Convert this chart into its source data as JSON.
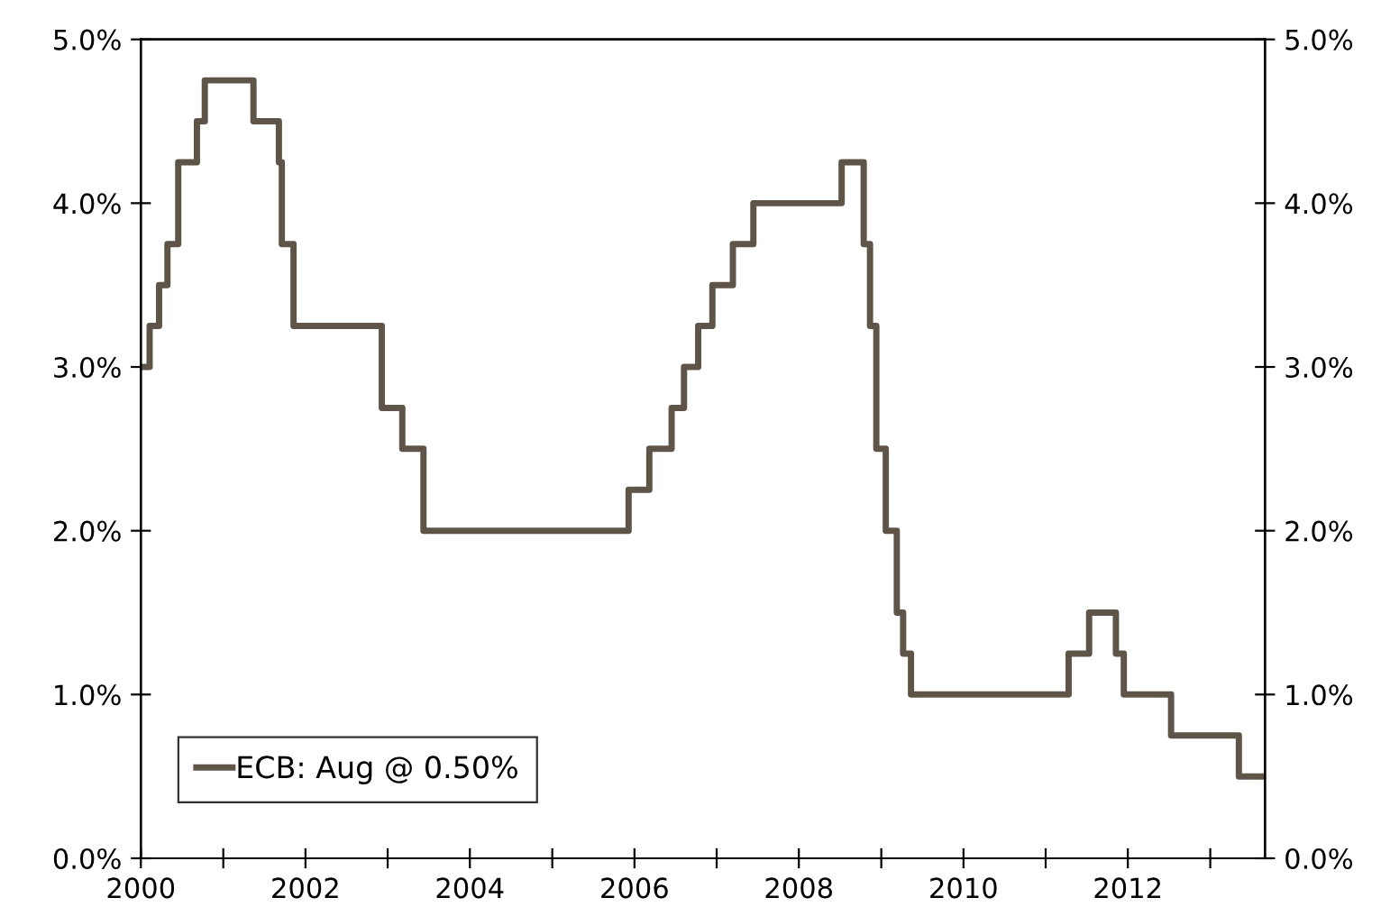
{
  "chart_data": {
    "type": "step",
    "x": [
      "2000-01-01",
      "2000-02-09",
      "2000-03-22",
      "2000-04-28",
      "2000-06-15",
      "2000-09-06",
      "2000-10-11",
      "2001-05-15",
      "2001-09-05",
      "2001-09-18",
      "2001-11-09",
      "2002-12-06",
      "2003-03-07",
      "2003-06-09",
      "2005-12-06",
      "2006-03-08",
      "2006-06-15",
      "2006-08-09",
      "2006-10-11",
      "2006-12-13",
      "2007-03-14",
      "2007-06-13",
      "2008-07-09",
      "2008-10-15",
      "2008-11-12",
      "2008-12-10",
      "2009-01-21",
      "2009-03-11",
      "2009-04-08",
      "2009-05-13",
      "2011-04-13",
      "2011-07-13",
      "2011-11-09",
      "2011-12-14",
      "2012-07-11",
      "2013-05-08",
      "2013-08-31"
    ],
    "series": [
      {
        "name": "ECB: Aug @ 0.50%",
        "color": "#5f5448",
        "values": [
          3.0,
          3.25,
          3.5,
          3.75,
          4.25,
          4.5,
          4.75,
          4.5,
          4.25,
          3.75,
          3.25,
          2.75,
          2.5,
          2.0,
          2.25,
          2.5,
          2.75,
          3.0,
          3.25,
          3.5,
          3.75,
          4.0,
          4.25,
          3.75,
          3.25,
          2.5,
          2.0,
          1.5,
          1.25,
          1.0,
          1.25,
          1.5,
          1.25,
          1.0,
          0.75,
          0.5,
          0.5
        ]
      }
    ],
    "xlim": [
      "2000-01-01",
      "2013-09-01"
    ],
    "xticks": [
      {
        "value": "2000",
        "label": "2000"
      },
      {
        "value": "2001",
        "label": null
      },
      {
        "value": "2002",
        "label": "2002"
      },
      {
        "value": "2003",
        "label": null
      },
      {
        "value": "2004",
        "label": "2004"
      },
      {
        "value": "2005",
        "label": null
      },
      {
        "value": "2006",
        "label": "2006"
      },
      {
        "value": "2007",
        "label": null
      },
      {
        "value": "2008",
        "label": "2008"
      },
      {
        "value": "2009",
        "label": null
      },
      {
        "value": "2010",
        "label": "2010"
      },
      {
        "value": "2011",
        "label": null
      },
      {
        "value": "2012",
        "label": "2012"
      },
      {
        "value": "2013",
        "label": null
      }
    ],
    "ylim": [
      0,
      5
    ],
    "yticks": [
      {
        "value": 0,
        "label": "0.0%"
      },
      {
        "value": 1,
        "label": "1.0%"
      },
      {
        "value": 2,
        "label": "2.0%"
      },
      {
        "value": 3,
        "label": "3.0%"
      },
      {
        "value": 4,
        "label": "4.0%"
      },
      {
        "value": 5,
        "label": "5.0%"
      }
    ],
    "y2lim": [
      0,
      5
    ],
    "y2ticks": [
      {
        "value": 0,
        "label": "0.0%"
      },
      {
        "value": 1,
        "label": "1.0%"
      },
      {
        "value": 2,
        "label": "2.0%"
      },
      {
        "value": 3,
        "label": "3.0%"
      },
      {
        "value": 4,
        "label": "4.0%"
      },
      {
        "value": 5,
        "label": "5.0%"
      }
    ],
    "legend": "bottom left",
    "grid": false,
    "line_style": "solid"
  }
}
